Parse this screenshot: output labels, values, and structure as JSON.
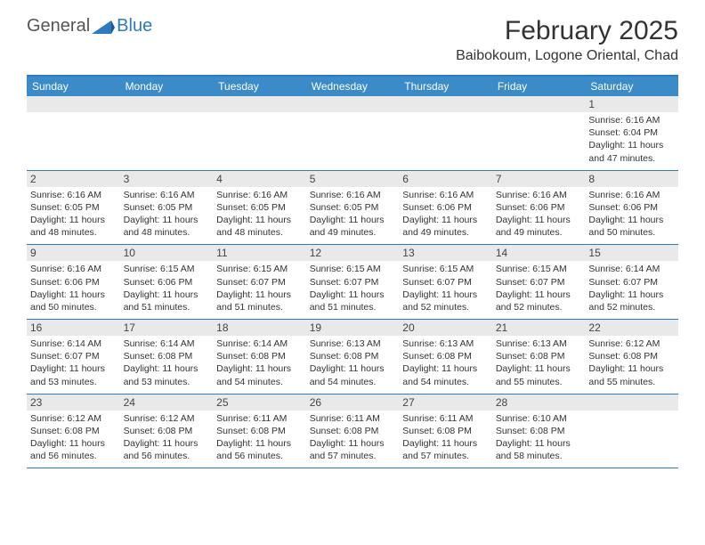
{
  "brand": {
    "first": "General",
    "second": "Blue",
    "icon_color": "#2c7ac0"
  },
  "title": "February 2025",
  "location": "Baibokoum, Logone Oriental, Chad",
  "weekdays": [
    "Sunday",
    "Monday",
    "Tuesday",
    "Wednesday",
    "Thursday",
    "Friday",
    "Saturday"
  ],
  "colors": {
    "header_bar": "#3b8bc9",
    "divider": "#2c7ac0",
    "day_bar": "#e9e9e9",
    "text": "#333333",
    "background": "#ffffff"
  },
  "weeks": [
    [
      null,
      null,
      null,
      null,
      null,
      null,
      {
        "n": "1",
        "sunrise": "Sunrise: 6:16 AM",
        "sunset": "Sunset: 6:04 PM",
        "daylight": "Daylight: 11 hours and 47 minutes."
      }
    ],
    [
      {
        "n": "2",
        "sunrise": "Sunrise: 6:16 AM",
        "sunset": "Sunset: 6:05 PM",
        "daylight": "Daylight: 11 hours and 48 minutes."
      },
      {
        "n": "3",
        "sunrise": "Sunrise: 6:16 AM",
        "sunset": "Sunset: 6:05 PM",
        "daylight": "Daylight: 11 hours and 48 minutes."
      },
      {
        "n": "4",
        "sunrise": "Sunrise: 6:16 AM",
        "sunset": "Sunset: 6:05 PM",
        "daylight": "Daylight: 11 hours and 48 minutes."
      },
      {
        "n": "5",
        "sunrise": "Sunrise: 6:16 AM",
        "sunset": "Sunset: 6:05 PM",
        "daylight": "Daylight: 11 hours and 49 minutes."
      },
      {
        "n": "6",
        "sunrise": "Sunrise: 6:16 AM",
        "sunset": "Sunset: 6:06 PM",
        "daylight": "Daylight: 11 hours and 49 minutes."
      },
      {
        "n": "7",
        "sunrise": "Sunrise: 6:16 AM",
        "sunset": "Sunset: 6:06 PM",
        "daylight": "Daylight: 11 hours and 49 minutes."
      },
      {
        "n": "8",
        "sunrise": "Sunrise: 6:16 AM",
        "sunset": "Sunset: 6:06 PM",
        "daylight": "Daylight: 11 hours and 50 minutes."
      }
    ],
    [
      {
        "n": "9",
        "sunrise": "Sunrise: 6:16 AM",
        "sunset": "Sunset: 6:06 PM",
        "daylight": "Daylight: 11 hours and 50 minutes."
      },
      {
        "n": "10",
        "sunrise": "Sunrise: 6:15 AM",
        "sunset": "Sunset: 6:06 PM",
        "daylight": "Daylight: 11 hours and 51 minutes."
      },
      {
        "n": "11",
        "sunrise": "Sunrise: 6:15 AM",
        "sunset": "Sunset: 6:07 PM",
        "daylight": "Daylight: 11 hours and 51 minutes."
      },
      {
        "n": "12",
        "sunrise": "Sunrise: 6:15 AM",
        "sunset": "Sunset: 6:07 PM",
        "daylight": "Daylight: 11 hours and 51 minutes."
      },
      {
        "n": "13",
        "sunrise": "Sunrise: 6:15 AM",
        "sunset": "Sunset: 6:07 PM",
        "daylight": "Daylight: 11 hours and 52 minutes."
      },
      {
        "n": "14",
        "sunrise": "Sunrise: 6:15 AM",
        "sunset": "Sunset: 6:07 PM",
        "daylight": "Daylight: 11 hours and 52 minutes."
      },
      {
        "n": "15",
        "sunrise": "Sunrise: 6:14 AM",
        "sunset": "Sunset: 6:07 PM",
        "daylight": "Daylight: 11 hours and 52 minutes."
      }
    ],
    [
      {
        "n": "16",
        "sunrise": "Sunrise: 6:14 AM",
        "sunset": "Sunset: 6:07 PM",
        "daylight": "Daylight: 11 hours and 53 minutes."
      },
      {
        "n": "17",
        "sunrise": "Sunrise: 6:14 AM",
        "sunset": "Sunset: 6:08 PM",
        "daylight": "Daylight: 11 hours and 53 minutes."
      },
      {
        "n": "18",
        "sunrise": "Sunrise: 6:14 AM",
        "sunset": "Sunset: 6:08 PM",
        "daylight": "Daylight: 11 hours and 54 minutes."
      },
      {
        "n": "19",
        "sunrise": "Sunrise: 6:13 AM",
        "sunset": "Sunset: 6:08 PM",
        "daylight": "Daylight: 11 hours and 54 minutes."
      },
      {
        "n": "20",
        "sunrise": "Sunrise: 6:13 AM",
        "sunset": "Sunset: 6:08 PM",
        "daylight": "Daylight: 11 hours and 54 minutes."
      },
      {
        "n": "21",
        "sunrise": "Sunrise: 6:13 AM",
        "sunset": "Sunset: 6:08 PM",
        "daylight": "Daylight: 11 hours and 55 minutes."
      },
      {
        "n": "22",
        "sunrise": "Sunrise: 6:12 AM",
        "sunset": "Sunset: 6:08 PM",
        "daylight": "Daylight: 11 hours and 55 minutes."
      }
    ],
    [
      {
        "n": "23",
        "sunrise": "Sunrise: 6:12 AM",
        "sunset": "Sunset: 6:08 PM",
        "daylight": "Daylight: 11 hours and 56 minutes."
      },
      {
        "n": "24",
        "sunrise": "Sunrise: 6:12 AM",
        "sunset": "Sunset: 6:08 PM",
        "daylight": "Daylight: 11 hours and 56 minutes."
      },
      {
        "n": "25",
        "sunrise": "Sunrise: 6:11 AM",
        "sunset": "Sunset: 6:08 PM",
        "daylight": "Daylight: 11 hours and 56 minutes."
      },
      {
        "n": "26",
        "sunrise": "Sunrise: 6:11 AM",
        "sunset": "Sunset: 6:08 PM",
        "daylight": "Daylight: 11 hours and 57 minutes."
      },
      {
        "n": "27",
        "sunrise": "Sunrise: 6:11 AM",
        "sunset": "Sunset: 6:08 PM",
        "daylight": "Daylight: 11 hours and 57 minutes."
      },
      {
        "n": "28",
        "sunrise": "Sunrise: 6:10 AM",
        "sunset": "Sunset: 6:08 PM",
        "daylight": "Daylight: 11 hours and 58 minutes."
      },
      null
    ]
  ]
}
